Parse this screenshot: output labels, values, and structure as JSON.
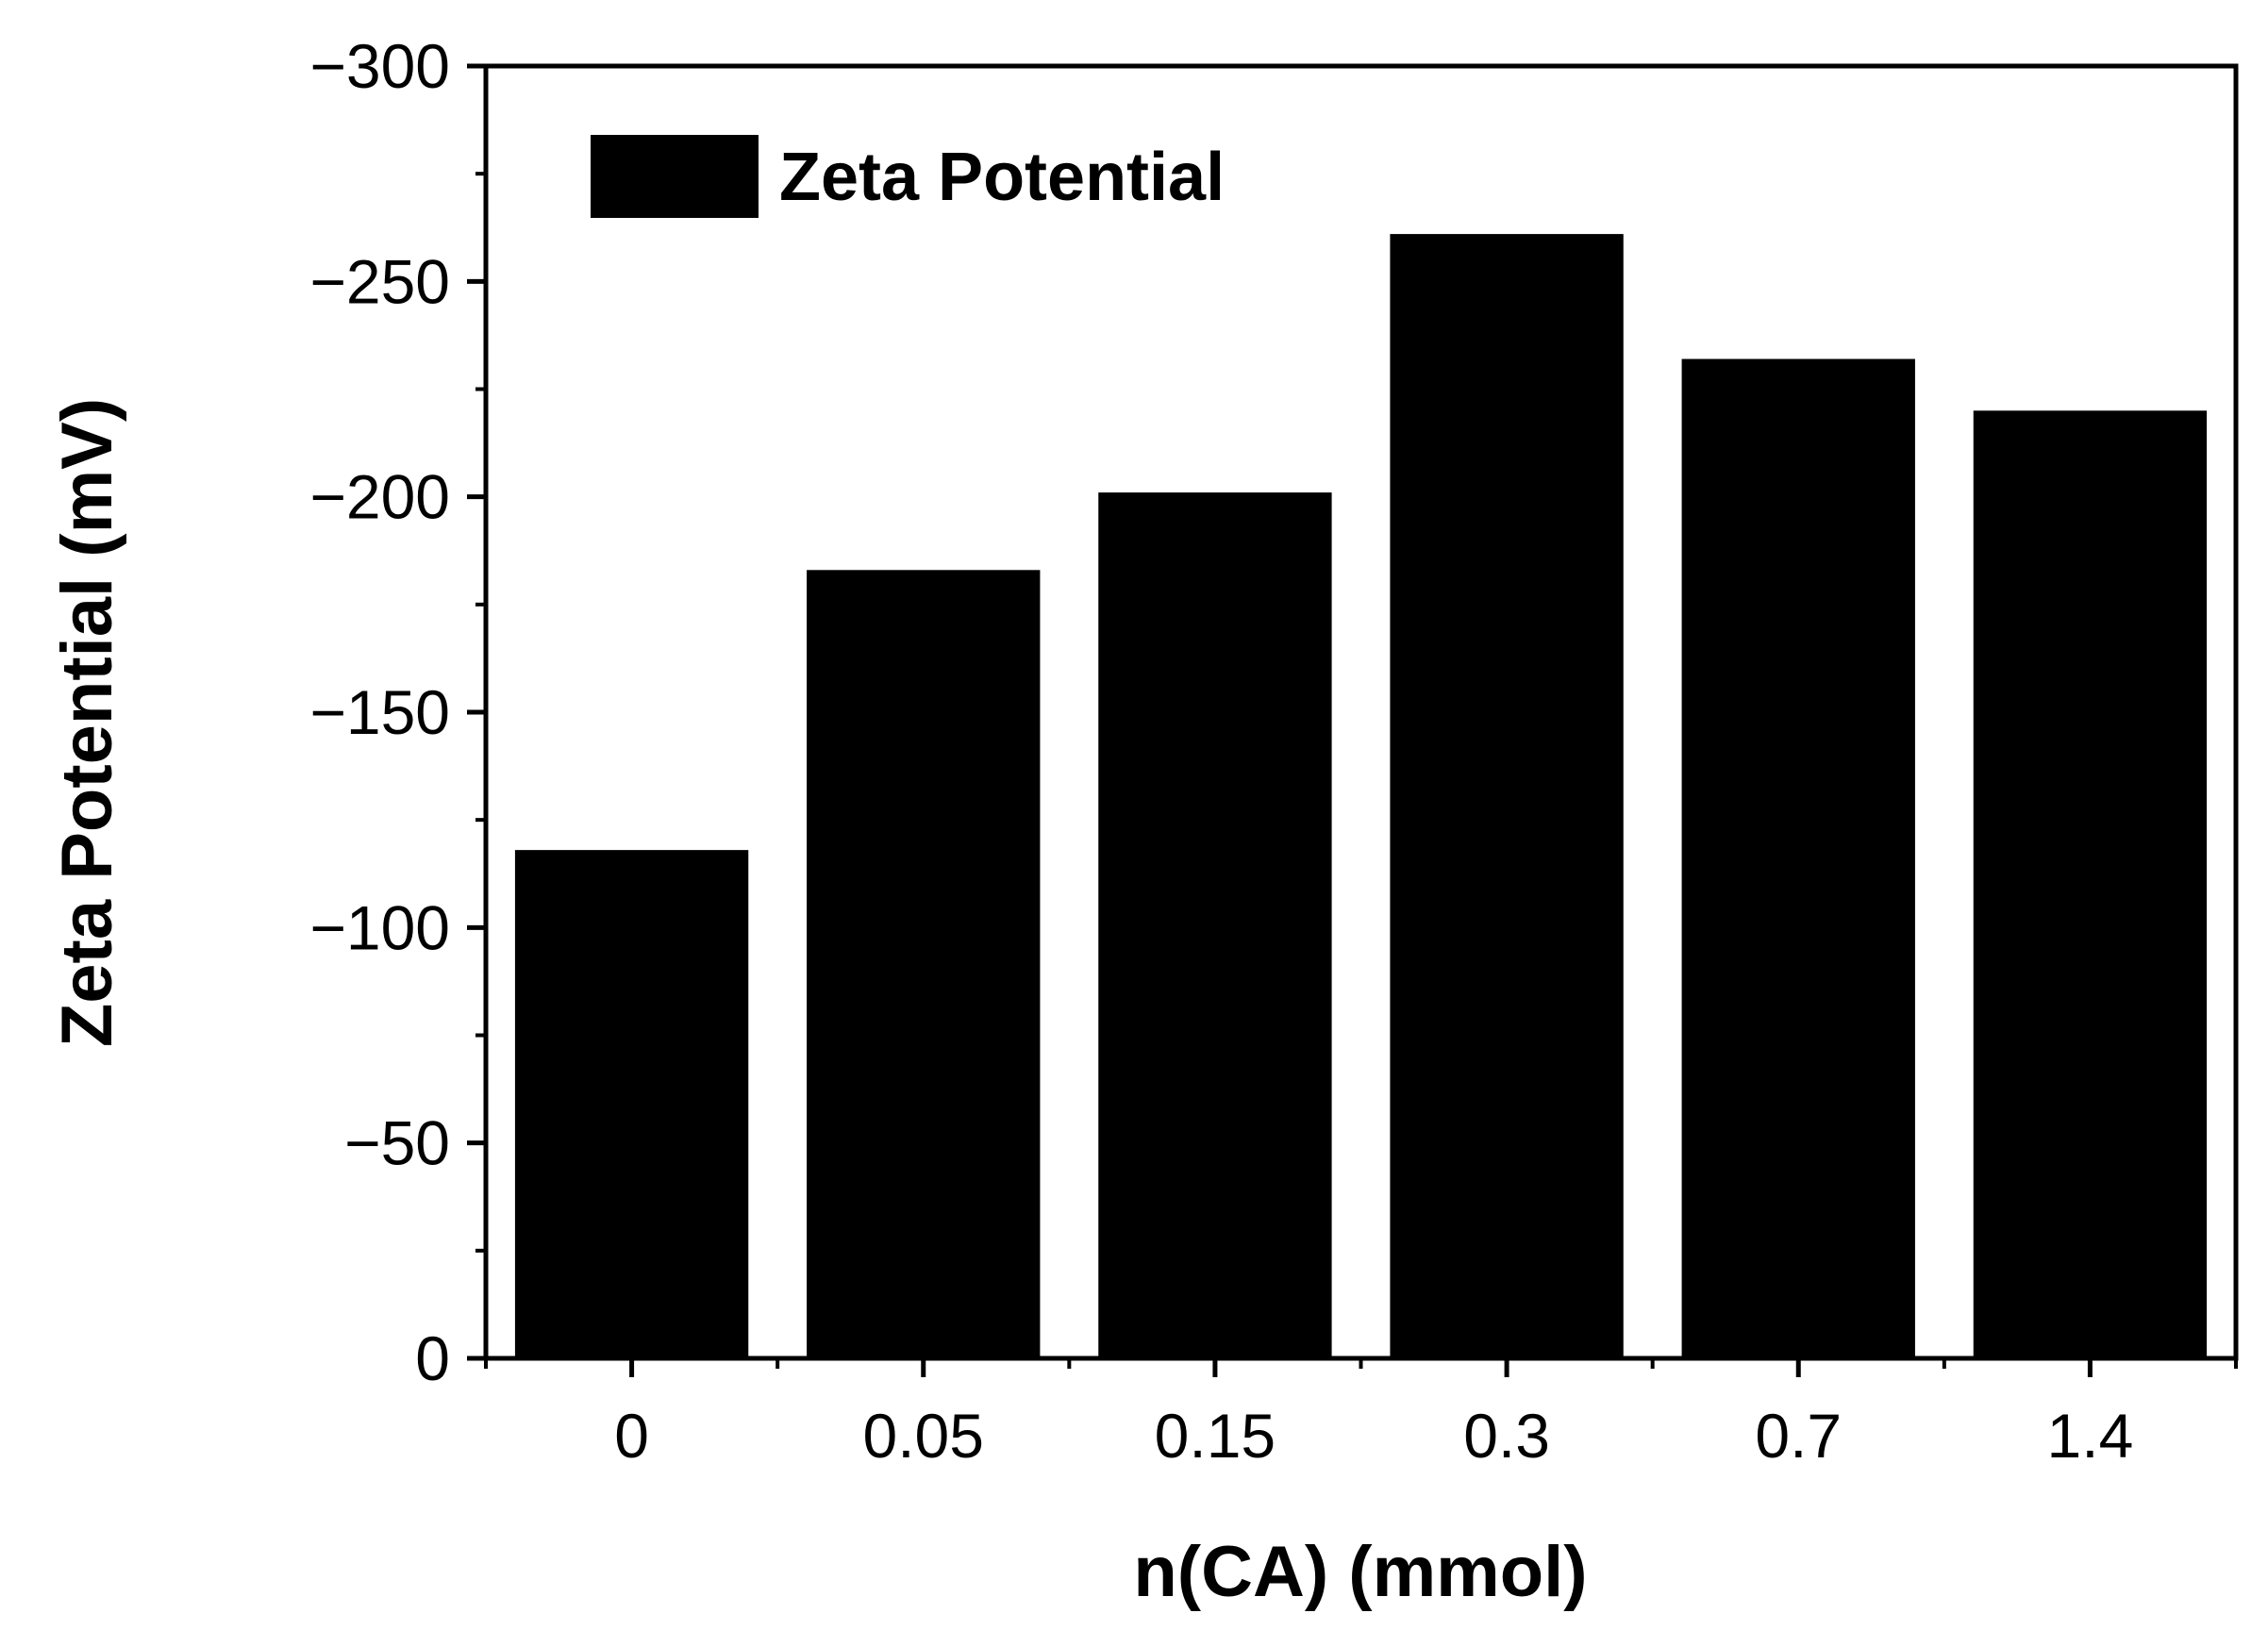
{
  "chart_data": {
    "type": "bar",
    "title": "",
    "xlabel": "n(CA) (mmol)",
    "ylabel": "Zeta Potential (mV)",
    "categories": [
      "0",
      "0.05",
      "0.15",
      "0.3",
      "0.7",
      "1.4"
    ],
    "series": [
      {
        "name": "Zeta Potential",
        "values": [
          -118,
          -183,
          -201,
          -261,
          -232,
          -220
        ],
        "color": "#000000"
      }
    ],
    "ylim": [
      0,
      -300
    ],
    "y_axis_inverted": true,
    "y_ticks": [
      0,
      -50,
      -100,
      -150,
      -200,
      -250,
      -300
    ],
    "y_tick_labels": [
      "0",
      "−50",
      "−100",
      "−150",
      "−200",
      "−250",
      "−300"
    ],
    "grid": false,
    "legend_position": "top-left"
  }
}
